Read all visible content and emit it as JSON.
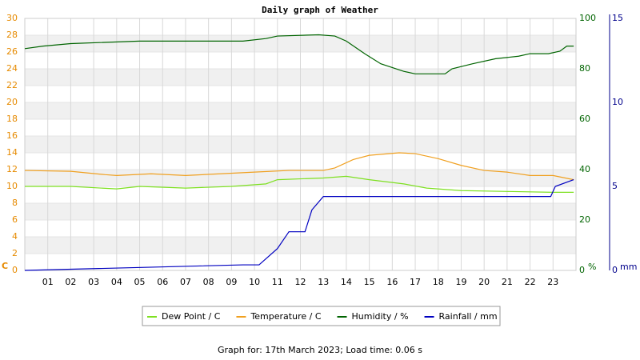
{
  "chart_data": {
    "type": "line",
    "title": "Daily graph of Weather",
    "footer": "Graph for: 17th March 2023; Load time: 0.06 s",
    "y_label": "C",
    "y2_label": "%",
    "y3_label": "mm",
    "xlim": [
      0,
      24
    ],
    "xticks": [
      {
        "value": 1,
        "label": "01"
      },
      {
        "value": 2,
        "label": "02"
      },
      {
        "value": 3,
        "label": "03"
      },
      {
        "value": 4,
        "label": "04"
      },
      {
        "value": 5,
        "label": "05"
      },
      {
        "value": 6,
        "label": "06"
      },
      {
        "value": 7,
        "label": "07"
      },
      {
        "value": 8,
        "label": "08"
      },
      {
        "value": 9,
        "label": "09"
      },
      10,
      11,
      12,
      13,
      14,
      15,
      16,
      17,
      18,
      19,
      20,
      21,
      22,
      23
    ],
    "ylim": [
      0,
      30
    ],
    "yticks": [
      0,
      2,
      4,
      6,
      8,
      10,
      12,
      14,
      16,
      18,
      20,
      22,
      24,
      26,
      28,
      30
    ],
    "y2lim": [
      0,
      100
    ],
    "y2ticks": [
      0,
      20,
      40,
      60,
      80,
      100
    ],
    "y3lim": [
      0,
      15
    ],
    "y3ticks": [
      0,
      5,
      10,
      15
    ],
    "y_color": "#e68a00",
    "y2_color": "#006400",
    "y3_color": "#00008b",
    "grid": true,
    "series": [
      {
        "name": "Dew Point / C",
        "color": "#7ee021",
        "axis": "y",
        "x": [
          0,
          2,
          4,
          5,
          7,
          9,
          10.5,
          11,
          13,
          14,
          15,
          16.5,
          17.5,
          19,
          21,
          23,
          23.9
        ],
        "values": [
          10,
          10,
          9.7,
          10,
          9.8,
          10,
          10.3,
          10.8,
          11,
          11.2,
          10.8,
          10.3,
          9.8,
          9.5,
          9.4,
          9.3,
          9.3
        ]
      },
      {
        "name": "Temperature / C",
        "color": "#f0a020",
        "axis": "y",
        "x": [
          0,
          2,
          3.5,
          4,
          5.5,
          7,
          8.5,
          10,
          11.5,
          13,
          13.5,
          14.3,
          15,
          16.3,
          17,
          18,
          19,
          20,
          21,
          22,
          23,
          23.9
        ],
        "values": [
          11.9,
          11.8,
          11.4,
          11.3,
          11.5,
          11.3,
          11.5,
          11.7,
          11.9,
          11.9,
          12.2,
          13.2,
          13.7,
          14,
          13.9,
          13.3,
          12.5,
          11.9,
          11.7,
          11.3,
          11.3,
          10.8
        ]
      },
      {
        "name": "Humidity / %",
        "color": "#006400",
        "axis": "y2",
        "x": [
          0,
          0.8,
          2,
          5,
          9.5,
          10.5,
          11,
          12.8,
          13.5,
          14,
          14.8,
          15.5,
          16.5,
          17,
          18.3,
          18.6,
          19.5,
          20.5,
          21.5,
          22,
          22.8,
          23.3,
          23.6,
          23.9
        ],
        "values": [
          88,
          89,
          90,
          91,
          91,
          92,
          93,
          93.5,
          93,
          91,
          86,
          82,
          79,
          78,
          78,
          80,
          82,
          84,
          85,
          86,
          86,
          87,
          89,
          89
        ]
      },
      {
        "name": "Rainfall / mm",
        "color": "#0000c0",
        "axis": "y3",
        "x": [
          0,
          9.5,
          10.2,
          11,
          11.5,
          12.2,
          12.5,
          13,
          22.9,
          23,
          23.1,
          23.9
        ],
        "values": [
          0,
          0.33,
          0.33,
          1.3,
          2.3,
          2.3,
          3.6,
          4.4,
          4.4,
          4.7,
          5.0,
          5.4
        ]
      }
    ]
  }
}
